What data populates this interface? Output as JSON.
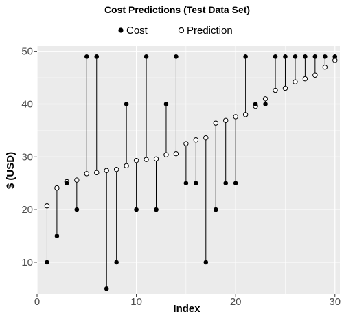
{
  "chart_data": {
    "type": "scatter",
    "title": "Cost Predictions (Test Data Set)",
    "xlabel": "Index",
    "ylabel": "$ (USD)",
    "xlim": [
      0,
      30.5
    ],
    "ylim": [
      4,
      51
    ],
    "x_ticks": [
      0,
      10,
      20,
      30
    ],
    "y_ticks": [
      10,
      20,
      30,
      40,
      50
    ],
    "grid": true,
    "legend_position": "top",
    "background_color": "#ebebeb",
    "grid_color": "#ffffff",
    "segment_color": "#000000",
    "series": [
      {
        "name": "Cost",
        "marker": "filled-circle",
        "x": [
          1,
          2,
          3,
          4,
          5,
          6,
          7,
          8,
          9,
          10,
          11,
          12,
          13,
          14,
          15,
          16,
          17,
          18,
          19,
          20,
          21,
          22,
          23,
          24,
          25,
          26,
          27,
          28,
          29,
          30
        ],
        "values": [
          10,
          15,
          25,
          20,
          49,
          49,
          5,
          10,
          40,
          20,
          49,
          20,
          40,
          49,
          25,
          25,
          10,
          20,
          25,
          25,
          49,
          40,
          40,
          49,
          49,
          49,
          49,
          49,
          49,
          49
        ]
      },
      {
        "name": "Prediction",
        "marker": "open-circle",
        "x": [
          1,
          2,
          3,
          4,
          5,
          6,
          7,
          8,
          9,
          10,
          11,
          12,
          13,
          14,
          15,
          16,
          17,
          18,
          19,
          20,
          21,
          22,
          23,
          24,
          25,
          26,
          27,
          28,
          29,
          30
        ],
        "values": [
          20.7,
          24.1,
          25.3,
          25.6,
          26.8,
          27.0,
          27.4,
          27.6,
          28.3,
          29.3,
          29.5,
          29.6,
          30.4,
          30.6,
          32.5,
          33.2,
          33.6,
          36.4,
          36.9,
          37.6,
          38.0,
          39.6,
          41.0,
          42.6,
          43.0,
          44.2,
          44.8,
          45.5,
          47.0,
          48.3
        ]
      }
    ]
  }
}
